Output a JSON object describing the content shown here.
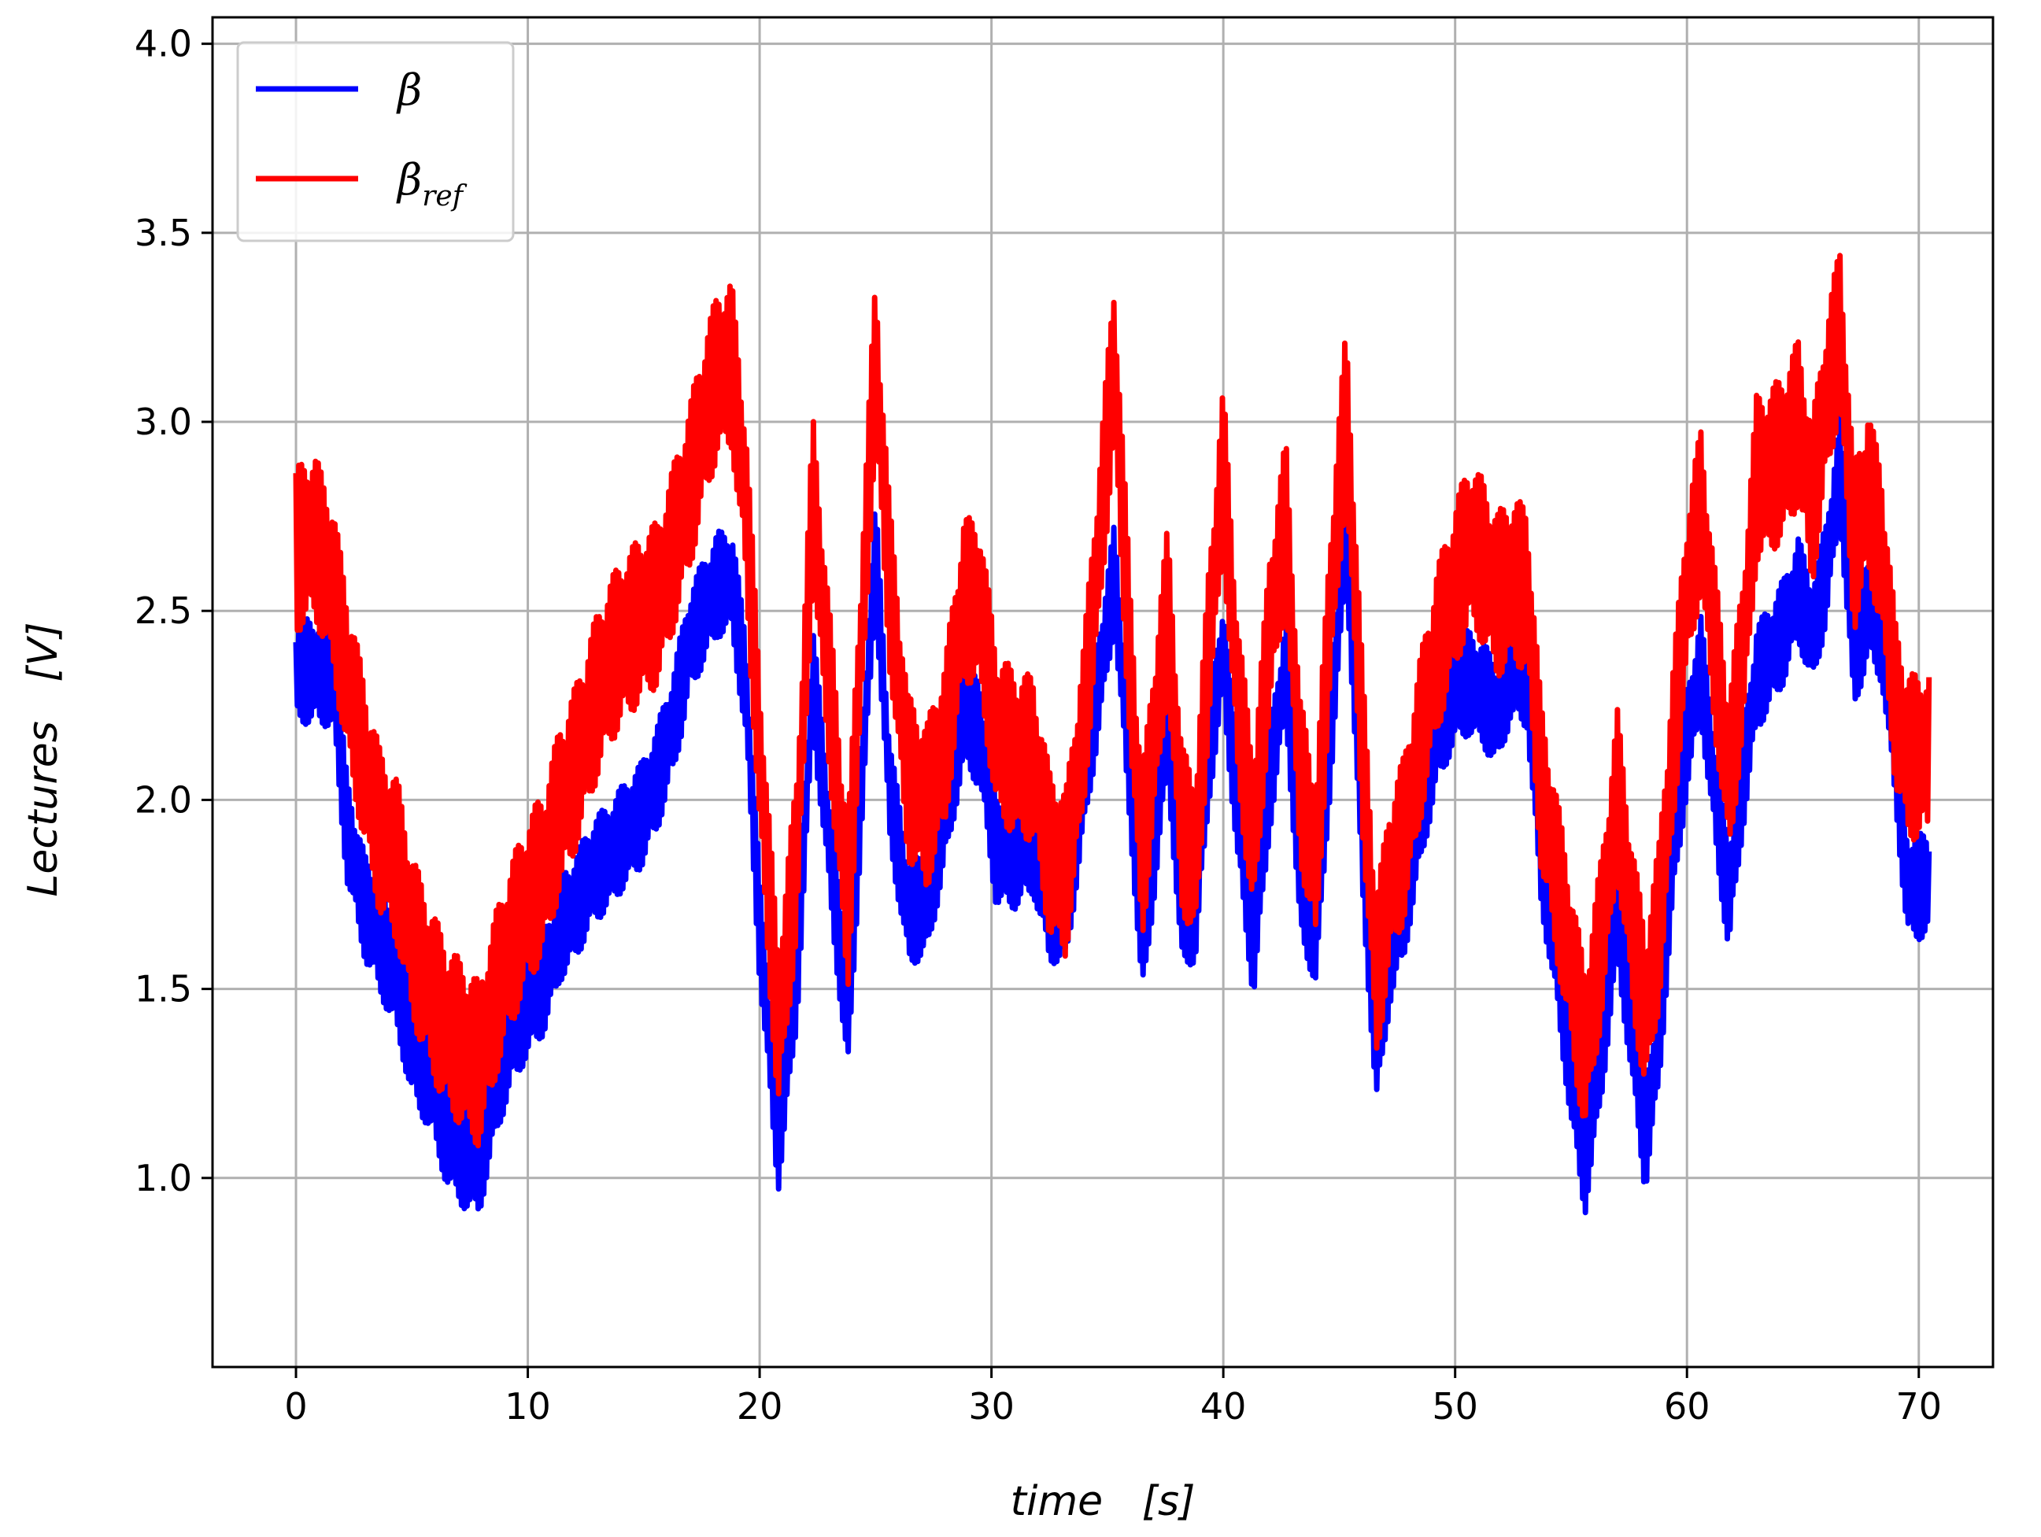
{
  "chart_data": {
    "type": "line",
    "title": "",
    "xlabel": "time   [s]",
    "ylabel": "Lectures   [V]",
    "xlim": [
      -3.6,
      73.2
    ],
    "ylim": [
      0.5,
      4.07
    ],
    "xticks": [
      0,
      10,
      20,
      30,
      40,
      50,
      60,
      70
    ],
    "yticks": [
      1.0,
      1.5,
      2.0,
      2.5,
      3.0,
      3.5,
      4.0
    ],
    "xtick_labels": [
      "0",
      "10",
      "20",
      "30",
      "40",
      "50",
      "60",
      "70"
    ],
    "ytick_labels": [
      "1.0",
      "1.5",
      "2.0",
      "2.5",
      "3.0",
      "3.5",
      "4.0"
    ],
    "grid": true,
    "legend": {
      "position": "top-left"
    },
    "series": [
      {
        "name": "β",
        "color": "#0000ff",
        "noise_band": 0.14,
        "x": [
          0,
          0.8,
          1.6,
          2.2,
          3.0,
          3.6,
          4.4,
          5.0,
          5.8,
          6.5,
          7.2,
          7.9,
          8.6,
          9.3,
          10,
          10.7,
          11.4,
          12.1,
          12.8,
          13.5,
          14.2,
          14.9,
          15.6,
          16.3,
          17.0,
          17.6,
          18.2,
          18.8,
          19.4,
          20.0,
          20.8,
          21.6,
          22.3,
          23.0,
          23.8,
          24.4,
          25.0,
          25.6,
          26.4,
          27.2,
          28.0,
          28.8,
          29.5,
          30.2,
          31.0,
          31.8,
          32.5,
          33.2,
          34.0,
          34.7,
          35.3,
          36.0,
          36.5,
          37.1,
          37.6,
          38.2,
          38.8,
          39.4,
          40.0,
          40.6,
          41.3,
          42.0,
          42.7,
          43.3,
          44.0,
          44.6,
          45.3,
          46.0,
          46.6,
          47.2,
          47.8,
          48.5,
          49.2,
          50.0,
          50.6,
          51.2,
          51.8,
          52.4,
          53.1,
          53.7,
          54.4,
          55.0,
          55.6,
          56.3,
          57.0,
          57.6,
          58.2,
          58.8,
          59.4,
          60.0,
          60.6,
          61.2,
          61.8,
          62.4,
          63.0,
          63.6,
          64.2,
          64.8,
          65.4,
          66.0,
          66.6,
          67.2,
          67.8,
          68.4,
          69.0,
          69.5,
          70.0,
          70.5
        ],
        "y": [
          2.34,
          2.34,
          2.33,
          1.92,
          1.71,
          1.63,
          1.51,
          1.35,
          1.26,
          1.12,
          1.06,
          1.04,
          1.24,
          1.38,
          1.46,
          1.52,
          1.66,
          1.72,
          1.81,
          1.85,
          1.91,
          1.96,
          2.06,
          2.21,
          2.42,
          2.5,
          2.57,
          2.58,
          2.3,
          1.66,
          1.1,
          1.54,
          2.32,
          1.89,
          1.4,
          2.05,
          2.66,
          2.03,
          1.7,
          1.72,
          1.96,
          2.23,
          2.17,
          1.86,
          1.85,
          1.89,
          1.71,
          1.7,
          2.05,
          2.34,
          2.59,
          2.05,
          1.6,
          1.92,
          2.21,
          1.69,
          1.71,
          2.14,
          2.4,
          1.98,
          1.61,
          2.05,
          2.36,
          1.78,
          1.64,
          2.15,
          2.74,
          1.88,
          1.32,
          1.6,
          1.72,
          1.96,
          2.17,
          2.29,
          2.31,
          2.28,
          2.22,
          2.35,
          2.33,
          1.86,
          1.58,
          1.28,
          1.04,
          1.34,
          1.71,
          1.4,
          1.1,
          1.38,
          1.86,
          2.16,
          2.35,
          2.02,
          1.73,
          2.05,
          2.32,
          2.38,
          2.45,
          2.56,
          2.43,
          2.6,
          2.88,
          2.37,
          2.51,
          2.45,
          2.12,
          1.77,
          1.77,
          1.78
        ]
      },
      {
        "name": "β",
        "subscript": "ref",
        "color": "#ff0000",
        "noise_band": 0.22,
        "x": [
          0,
          0.8,
          1.6,
          2.2,
          3.0,
          3.6,
          4.4,
          5.0,
          5.8,
          6.5,
          7.2,
          7.9,
          8.6,
          9.3,
          10,
          10.7,
          11.4,
          12.1,
          12.8,
          13.5,
          14.2,
          14.9,
          15.6,
          16.3,
          17.0,
          17.6,
          18.2,
          18.8,
          19.4,
          20.0,
          20.8,
          21.6,
          22.3,
          23.0,
          23.8,
          24.4,
          25.0,
          25.6,
          26.4,
          27.2,
          28.0,
          28.8,
          29.5,
          30.2,
          31.0,
          31.8,
          32.5,
          33.2,
          34.0,
          34.7,
          35.3,
          36.0,
          36.5,
          37.1,
          37.6,
          38.2,
          38.8,
          39.4,
          40.0,
          40.6,
          41.3,
          42.0,
          42.7,
          43.3,
          44.0,
          44.6,
          45.3,
          46.0,
          46.6,
          47.2,
          47.8,
          48.5,
          49.2,
          50.0,
          50.6,
          51.2,
          51.8,
          52.4,
          53.1,
          53.7,
          54.4,
          55.0,
          55.6,
          56.3,
          57.0,
          57.6,
          58.2,
          58.8,
          59.4,
          60.0,
          60.6,
          61.2,
          61.8,
          62.4,
          63.0,
          63.6,
          64.2,
          64.8,
          65.4,
          66.0,
          66.6,
          67.2,
          67.8,
          68.4,
          69.0,
          69.5,
          70.0,
          70.5
        ],
        "y": [
          2.66,
          2.7,
          2.56,
          2.33,
          2.08,
          1.92,
          1.83,
          1.64,
          1.5,
          1.4,
          1.35,
          1.3,
          1.48,
          1.62,
          1.73,
          1.81,
          1.98,
          2.09,
          2.24,
          2.36,
          2.43,
          2.48,
          2.52,
          2.67,
          2.83,
          3.0,
          3.13,
          3.15,
          2.79,
          2.12,
          1.38,
          1.85,
          2.8,
          2.3,
          1.7,
          2.44,
          3.18,
          2.57,
          2.06,
          1.98,
          2.15,
          2.53,
          2.52,
          2.18,
          2.12,
          2.11,
          1.86,
          1.8,
          2.21,
          2.72,
          3.17,
          2.33,
          1.84,
          2.21,
          2.51,
          1.93,
          1.83,
          2.43,
          2.88,
          2.28,
          1.88,
          2.44,
          2.74,
          2.06,
          1.82,
          2.49,
          3.04,
          2.14,
          1.52,
          1.79,
          1.9,
          2.16,
          2.39,
          2.56,
          2.68,
          2.63,
          2.54,
          2.58,
          2.56,
          2.04,
          1.79,
          1.56,
          1.33,
          1.63,
          2.02,
          1.69,
          1.43,
          1.67,
          2.14,
          2.55,
          2.77,
          2.4,
          2.05,
          2.37,
          2.85,
          2.87,
          2.91,
          3.0,
          2.78,
          3.05,
          3.25,
          2.66,
          2.82,
          2.66,
          2.25,
          2.12,
          2.11,
          2.13
        ]
      }
    ]
  }
}
